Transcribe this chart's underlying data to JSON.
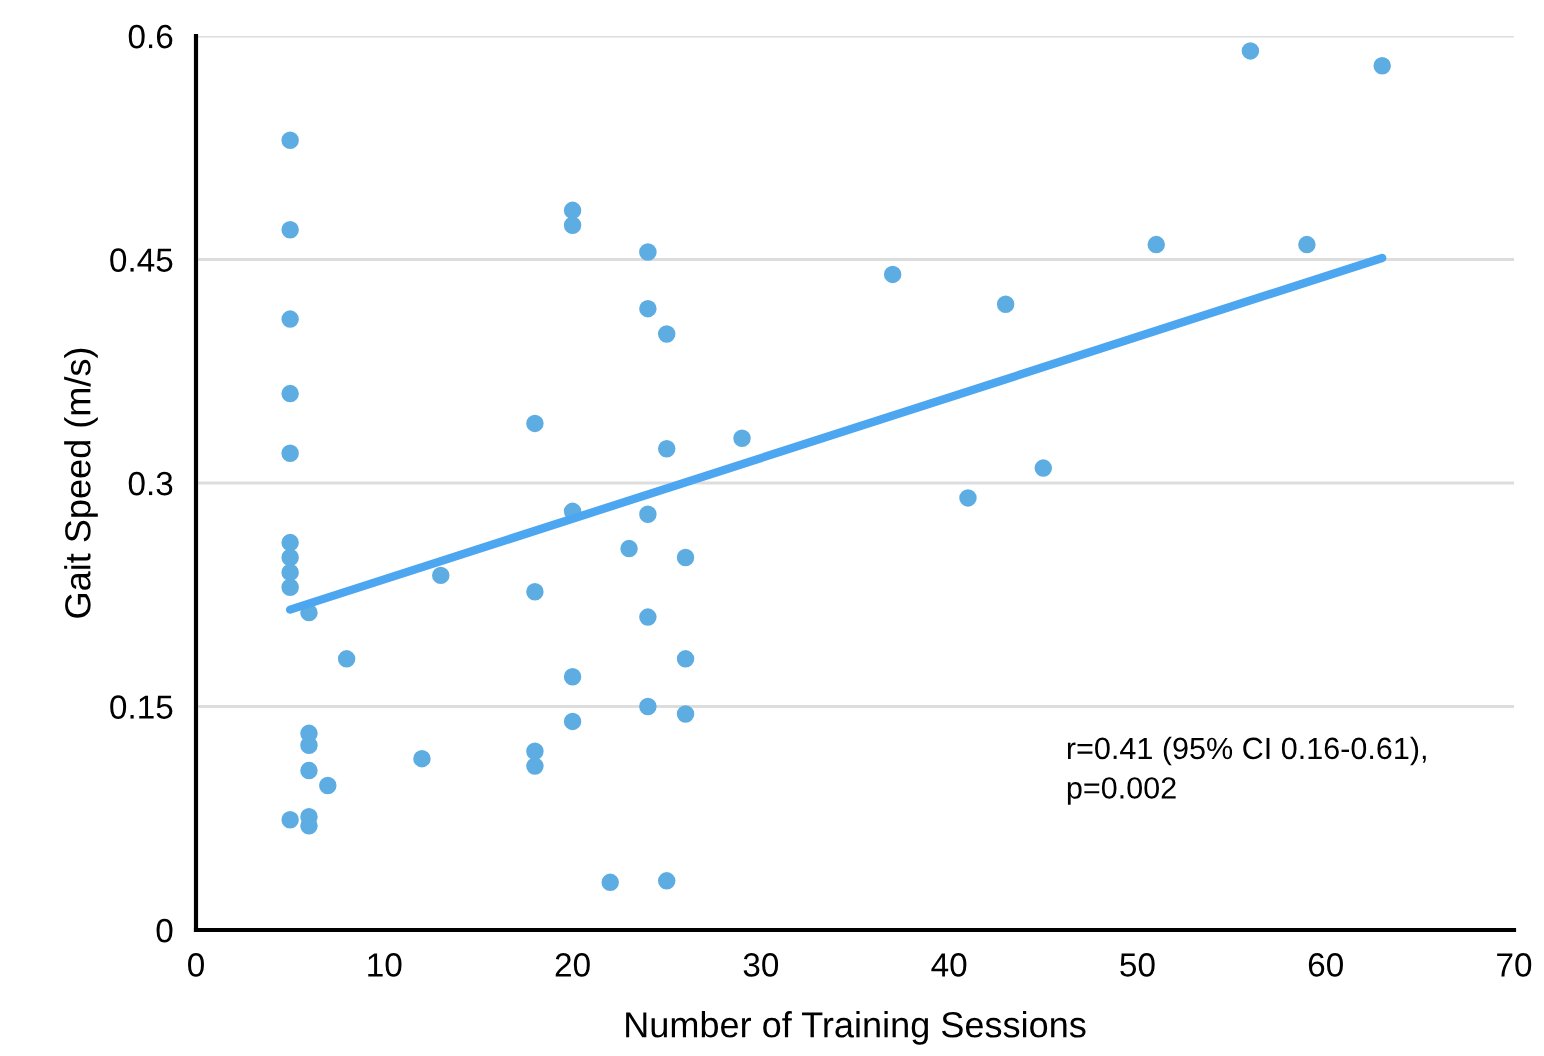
{
  "chart_data": {
    "type": "scatter",
    "xlabel": "Number of Training Sessions",
    "ylabel": "Gait Speed (m/s)",
    "xlim": [
      0,
      70
    ],
    "xticks": [
      0,
      10,
      20,
      30,
      40,
      50,
      60,
      70
    ],
    "ylim": [
      0,
      0.6
    ],
    "yticks": [
      0,
      0.15,
      0.3,
      0.45,
      0.6
    ],
    "grid": "y",
    "annotations": [
      "r=0.41 (95% CI 0.16-0.61),\np=0.002"
    ],
    "series": [
      {
        "marker": "circle",
        "color": "#5dade2",
        "x": [
          5,
          5,
          5,
          5,
          5,
          5,
          5,
          5,
          5,
          5,
          6,
          6,
          6,
          6,
          6,
          6,
          7,
          8,
          12,
          13,
          18,
          18,
          18,
          18,
          20,
          20,
          20,
          20,
          20,
          22,
          23,
          24,
          24,
          24,
          24,
          24,
          25,
          25,
          25,
          26,
          26,
          26,
          29,
          37,
          41,
          43,
          45,
          51,
          56,
          59,
          63
        ],
        "values": [
          0.53,
          0.47,
          0.41,
          0.36,
          0.32,
          0.26,
          0.25,
          0.24,
          0.23,
          0.074,
          0.213,
          0.132,
          0.124,
          0.107,
          0.076,
          0.07,
          0.097,
          0.182,
          0.115,
          0.238,
          0.34,
          0.227,
          0.12,
          0.11,
          0.483,
          0.473,
          0.281,
          0.17,
          0.14,
          0.032,
          0.256,
          0.455,
          0.417,
          0.279,
          0.21,
          0.15,
          0.4,
          0.323,
          0.033,
          0.25,
          0.182,
          0.145,
          0.33,
          0.44,
          0.29,
          0.42,
          0.31,
          0.46,
          0.59,
          0.46,
          0.58
        ]
      },
      {
        "type": "line",
        "marker": "none",
        "color": "#4da6f0",
        "x": [
          5,
          63
        ],
        "values": [
          0.215,
          0.451
        ]
      }
    ]
  }
}
